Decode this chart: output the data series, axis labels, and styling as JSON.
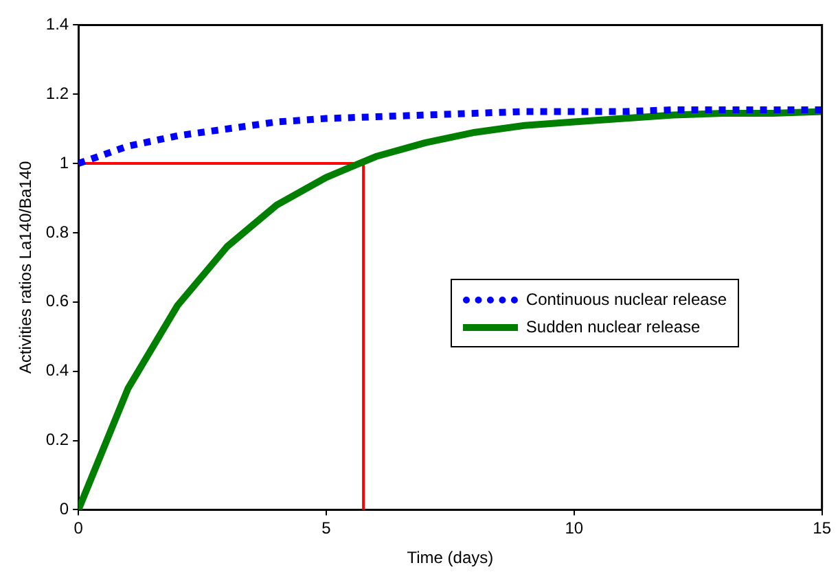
{
  "chart_data": {
    "type": "line",
    "xlabel": "Time (days)",
    "ylabel": "Activities ratios La140/Ba140",
    "xlim": [
      0,
      15
    ],
    "xticks": [
      0,
      5,
      10,
      15
    ],
    "ylim": [
      0,
      1.4
    ],
    "yticks": [
      0,
      0.2,
      0.4,
      0.6,
      0.8,
      1,
      1.2,
      1.4
    ],
    "grid": false,
    "legend": "right",
    "marker": "none",
    "x": [
      0,
      1,
      2,
      3,
      4,
      5,
      6,
      7,
      8,
      9,
      10,
      11,
      12,
      13,
      14,
      15
    ],
    "series": [
      {
        "name": "Continuous nuclear release",
        "color": "#0000ff",
        "line_style": "dotted",
        "values": [
          1.0,
          1.05,
          1.08,
          1.1,
          1.12,
          1.13,
          1.135,
          1.14,
          1.145,
          1.15,
          1.15,
          1.15,
          1.155,
          1.155,
          1.155,
          1.155
        ]
      },
      {
        "name": "Sudden nuclear release",
        "color": "#007f00",
        "line_style": "solid",
        "values": [
          0,
          0.35,
          0.59,
          0.76,
          0.88,
          0.96,
          1.02,
          1.06,
          1.09,
          1.11,
          1.12,
          1.13,
          1.14,
          1.145,
          1.145,
          1.15
        ]
      }
    ],
    "ref_lines": [
      {
        "axis": "y",
        "value": 1,
        "color": "#ff0000",
        "line_style": "solid"
      },
      {
        "axis": "x",
        "value": 5.75,
        "color": "#ff0000",
        "line_style": "solid"
      }
    ]
  }
}
